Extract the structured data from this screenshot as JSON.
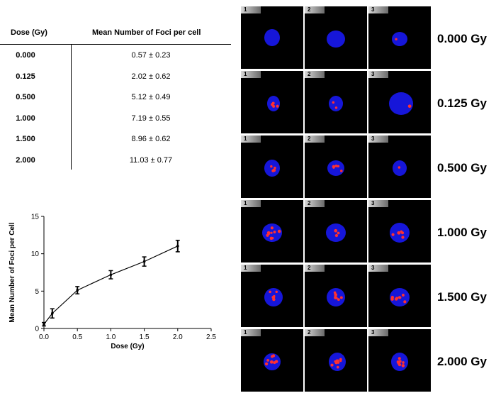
{
  "table": {
    "headers": {
      "dose": "Dose (Gy)",
      "foci": "Mean Number of Foci per cell"
    },
    "rows": [
      {
        "dose": "0.000",
        "foci": "0.57 ± 0.23"
      },
      {
        "dose": "0.125",
        "foci": "2.02 ± 0.62"
      },
      {
        "dose": "0.500",
        "foci": "5.12 ± 0.49"
      },
      {
        "dose": "1.000",
        "foci": "7.19 ± 0.55"
      },
      {
        "dose": "1.500",
        "foci": "8.96 ± 0.62"
      },
      {
        "dose": "2.000",
        "foci": "11.03 ± 0.77"
      }
    ]
  },
  "chart_data": {
    "type": "line",
    "xlabel": "Dose  (Gy)",
    "ylabel": "Mean Number of Foci per Cell",
    "xlim": [
      0,
      2.5
    ],
    "ylim": [
      0,
      15
    ],
    "xticks": [
      0.0,
      0.5,
      1.0,
      1.5,
      2.0,
      2.5
    ],
    "xtick_labels": [
      "0.0",
      "0.5",
      "1.0",
      "1.5",
      "2.0",
      "2.5"
    ],
    "yticks": [
      0,
      5,
      10,
      15
    ],
    "ytick_labels": [
      "0",
      "5",
      "10",
      "15"
    ],
    "grid": false,
    "x": [
      0,
      0.125,
      0.5,
      1.0,
      1.5,
      2.0
    ],
    "y": [
      0.57,
      2.02,
      5.12,
      7.19,
      8.96,
      11.03
    ],
    "err": [
      0.23,
      0.62,
      0.49,
      0.55,
      0.62,
      0.77
    ]
  },
  "panels": {
    "column_tags": [
      "1",
      "2",
      "3"
    ],
    "dose_labels": [
      "0.000 Gy",
      "0.125 Gy",
      "0.500 Gy",
      "1.000 Gy",
      "1.500 Gy",
      "2.000 Gy"
    ],
    "colors": {
      "nucleus": "#1a1aff",
      "foci": "#ff3030",
      "background": "#000000"
    }
  }
}
